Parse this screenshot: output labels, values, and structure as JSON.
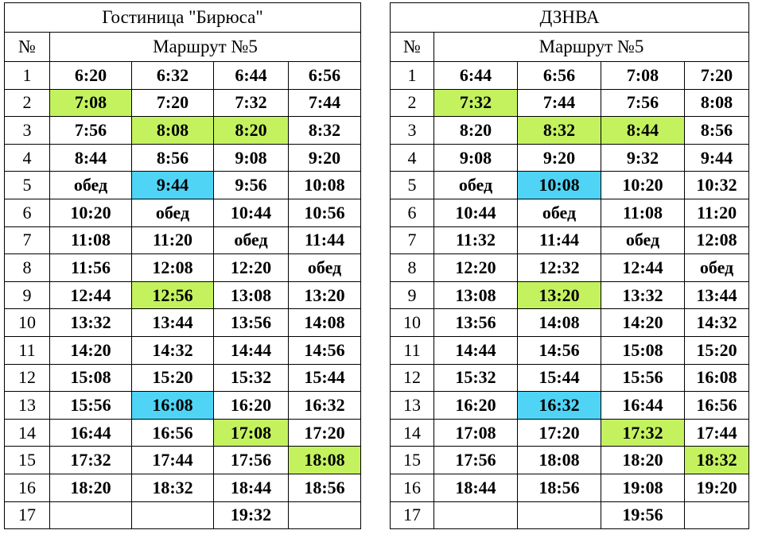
{
  "tables": [
    {
      "title": "Гостиница \"Бирюса\"",
      "number_header": "№",
      "route_header": "Маршрут №5",
      "rows": [
        {
          "number": "1",
          "cells": [
            "6:20",
            "6:32",
            "6:44",
            "6:56"
          ]
        },
        {
          "number": "2",
          "cells": [
            {
              "text": "7:08",
              "fill": "#c4f25f"
            },
            "7:20",
            "7:32",
            "7:44"
          ]
        },
        {
          "number": "3",
          "cells": [
            "7:56",
            {
              "text": "8:08",
              "fill": "#c4f25f"
            },
            {
              "text": "8:20",
              "fill": "#c4f25f"
            },
            "8:32"
          ]
        },
        {
          "number": "4",
          "cells": [
            "8:44",
            "8:56",
            "9:08",
            "9:20"
          ]
        },
        {
          "number": "5",
          "cells": [
            "обед",
            {
              "text": "9:44",
              "fill": "#4fd4f6"
            },
            "9:56",
            "10:08"
          ]
        },
        {
          "number": "6",
          "cells": [
            "10:20",
            "обед",
            "10:44",
            "10:56"
          ]
        },
        {
          "number": "7",
          "cells": [
            "11:08",
            "11:20",
            "обед",
            "11:44"
          ]
        },
        {
          "number": "8",
          "cells": [
            "11:56",
            "12:08",
            "12:20",
            "обед"
          ]
        },
        {
          "number": "9",
          "cells": [
            "12:44",
            {
              "text": "12:56",
              "fill": "#c4f25f"
            },
            "13:08",
            "13:20"
          ]
        },
        {
          "number": "10",
          "cells": [
            "13:32",
            "13:44",
            "13:56",
            "14:08"
          ]
        },
        {
          "number": "11",
          "cells": [
            "14:20",
            "14:32",
            "14:44",
            "14:56"
          ]
        },
        {
          "number": "12",
          "cells": [
            "15:08",
            "15:20",
            "15:32",
            "15:44"
          ]
        },
        {
          "number": "13",
          "cells": [
            "15:56",
            {
              "text": "16:08",
              "fill": "#4fd4f6"
            },
            "16:20",
            "16:32"
          ]
        },
        {
          "number": "14",
          "cells": [
            "16:44",
            "16:56",
            {
              "text": "17:08",
              "fill": "#c4f25f"
            },
            "17:20"
          ]
        },
        {
          "number": "15",
          "cells": [
            "17:32",
            "17:44",
            "17:56",
            {
              "text": "18:08",
              "fill": "#c4f25f"
            }
          ]
        },
        {
          "number": "16",
          "cells": [
            "18:20",
            "18:32",
            "18:44",
            "18:56"
          ]
        },
        {
          "number": "17",
          "cells": [
            null,
            null,
            "19:32",
            null
          ]
        }
      ]
    },
    {
      "title": "ДЗНВА",
      "number_header": "№",
      "route_header": "Маршрут №5",
      "rows": [
        {
          "number": "1",
          "cells": [
            "6:44",
            "6:56",
            "7:08",
            "7:20"
          ]
        },
        {
          "number": "2",
          "cells": [
            {
              "text": "7:32",
              "fill": "#c4f25f"
            },
            "7:44",
            "7:56",
            "8:08"
          ]
        },
        {
          "number": "3",
          "cells": [
            "8:20",
            {
              "text": "8:32",
              "fill": "#c4f25f"
            },
            {
              "text": "8:44",
              "fill": "#c4f25f"
            },
            "8:56"
          ]
        },
        {
          "number": "4",
          "cells": [
            "9:08",
            "9:20",
            "9:32",
            "9:44"
          ]
        },
        {
          "number": "5",
          "cells": [
            "обед",
            {
              "text": "10:08",
              "fill": "#4fd4f6"
            },
            "10:20",
            "10:32"
          ]
        },
        {
          "number": "6",
          "cells": [
            "10:44",
            "обед",
            "11:08",
            "11:20"
          ]
        },
        {
          "number": "7",
          "cells": [
            "11:32",
            "11:44",
            "обед",
            "12:08"
          ]
        },
        {
          "number": "8",
          "cells": [
            "12:20",
            "12:32",
            "12:44",
            "обед"
          ]
        },
        {
          "number": "9",
          "cells": [
            "13:08",
            {
              "text": "13:20",
              "fill": "#c4f25f"
            },
            "13:32",
            "13:44"
          ]
        },
        {
          "number": "10",
          "cells": [
            "13:56",
            "14:08",
            "14:20",
            "14:32"
          ]
        },
        {
          "number": "11",
          "cells": [
            "14:44",
            "14:56",
            "15:08",
            "15:20"
          ]
        },
        {
          "number": "12",
          "cells": [
            "15:32",
            "15:44",
            "15:56",
            "16:08"
          ]
        },
        {
          "number": "13",
          "cells": [
            "16:20",
            {
              "text": "16:32",
              "fill": "#4fd4f6"
            },
            "16:44",
            "16:56"
          ]
        },
        {
          "number": "14",
          "cells": [
            "17:08",
            "17:20",
            {
              "text": "17:32",
              "fill": "#c4f25f"
            },
            "17:44"
          ]
        },
        {
          "number": "15",
          "cells": [
            "17:56",
            "18:08",
            "18:20",
            {
              "text": "18:32",
              "fill": "#c4f25f"
            }
          ]
        },
        {
          "number": "16",
          "cells": [
            "18:44",
            "18:56",
            "19:08",
            "19:20"
          ]
        },
        {
          "number": "17",
          "cells": [
            null,
            null,
            "19:56",
            null
          ]
        }
      ]
    }
  ]
}
